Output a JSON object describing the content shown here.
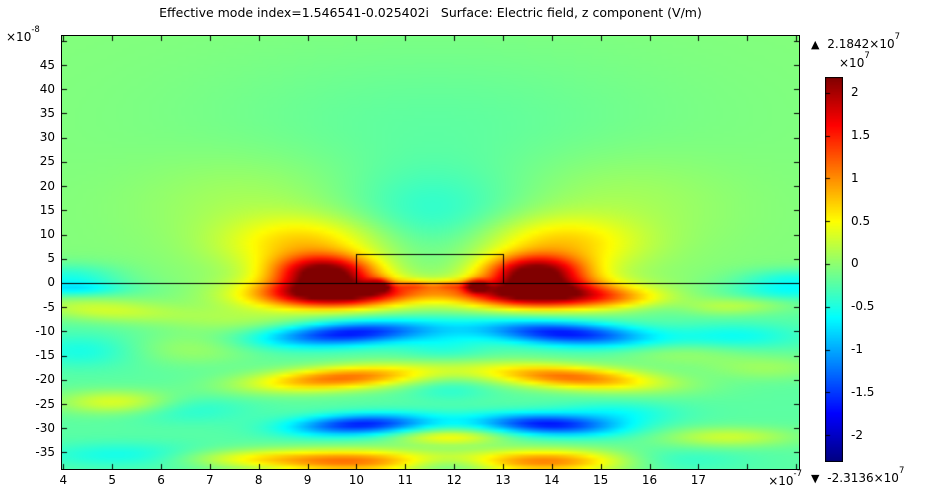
{
  "title": "Effective mode index=1.546541-0.025402i   Surface: Electric field, z component (V/m)",
  "axes": {
    "x": {
      "offset_prefix": "×10",
      "offset_exp": "-7"
    },
    "y": {
      "offset_prefix": "×10",
      "offset_exp": "-8"
    }
  },
  "colorbar": {
    "max_marker": "▲",
    "max_mantissa": " 2.1842×10",
    "max_exp": "7",
    "scale_prefix": "×10",
    "scale_exp": "7",
    "min_marker": "▼",
    "min_mantissa": " -2.3136×10",
    "min_exp": "7"
  },
  "colors": {
    "frame": "#000000",
    "background": "#ffffff",
    "max_color": "#800000",
    "min_color": "#000080",
    "zero_color": "#80ff80"
  },
  "chart_data": {
    "type": "heatmap",
    "title": "Effective mode index=1.546541-0.025402i   Surface: Electric field, z component (V/m)",
    "quantity": "Electric field, z component (V/m)",
    "effective_mode_index": "1.546541-0.025402i",
    "colormap": "jet-rainbow",
    "x_unit_scale": 1e-07,
    "y_unit_scale": 1e-08,
    "value_unit_scale": 10000000.0,
    "vmax": 2.1842,
    "vmin": -2.3136,
    "x_range": [
      3.973,
      19.06
    ],
    "y_range": [
      -38.41,
      51.0
    ],
    "x_tick_labels": [
      4,
      5,
      6,
      7,
      8,
      9,
      10,
      11,
      12,
      13,
      14,
      15,
      16,
      17
    ],
    "x_tick_marks": [
      4,
      5,
      6,
      7,
      8,
      9,
      10,
      11,
      12,
      13,
      14,
      15,
      16,
      17,
      18,
      19
    ],
    "y_tick_labels": [
      45,
      40,
      35,
      30,
      25,
      20,
      15,
      10,
      5,
      0,
      -5,
      -10,
      -15,
      -20,
      -25,
      -30,
      -35
    ],
    "y_tick_marks": [
      50,
      45,
      40,
      35,
      30,
      25,
      20,
      15,
      10,
      5,
      0,
      -5,
      -10,
      -15,
      -20,
      -25,
      -30,
      -35
    ],
    "colorbar_ticks": [
      2,
      1.5,
      1,
      0.5,
      0,
      -0.5,
      -1,
      -1.5,
      -2
    ],
    "geometry": {
      "interface_line_y": 0,
      "waveguide_rect": {
        "x1": 10,
        "x2": 13,
        "y1": 0,
        "y2": 6
      }
    },
    "base_field": {
      "above_interface": -0.05,
      "below_interface": -0.22
    },
    "field_blobs": [
      {
        "x": 11.55,
        "y": 14,
        "sx": 1.3,
        "sy": 6.5,
        "a": -0.35
      },
      {
        "x": 11.6,
        "y": 32,
        "sx": 3.4,
        "sy": 11,
        "a": -0.16
      },
      {
        "x": 9.0,
        "y": 8,
        "sx": 1.15,
        "sy": 4,
        "a": 0.75
      },
      {
        "x": 14.1,
        "y": 8,
        "sx": 1.15,
        "sy": 4,
        "a": 0.75
      },
      {
        "x": 7.9,
        "y": 17,
        "sx": 1.6,
        "sy": 7,
        "a": 0.18
      },
      {
        "x": 15.3,
        "y": 17,
        "sx": 1.6,
        "sy": 7,
        "a": 0.18
      },
      {
        "x": 9.35,
        "y": 2.2,
        "sx": 0.72,
        "sy": 2.4,
        "a": 2.1
      },
      {
        "x": 13.65,
        "y": 2.2,
        "sx": 0.72,
        "sy": 2.4,
        "a": 2.1
      },
      {
        "x": 4.1,
        "y": 1.2,
        "sx": 0.8,
        "sy": 2.0,
        "a": -0.42
      },
      {
        "x": 18.95,
        "y": 0.8,
        "sx": 0.8,
        "sy": 1.6,
        "a": -0.42
      },
      {
        "x": 10.45,
        "y": -0.6,
        "sx": 0.16,
        "sy": 0.8,
        "a": 1.6
      },
      {
        "x": 12.45,
        "y": -0.6,
        "sx": 0.16,
        "sy": 0.8,
        "a": 1.6
      },
      {
        "x": 11.2,
        "y": -0.4,
        "sx": 0.25,
        "sy": 0.6,
        "a": 0.5
      },
      {
        "x": 11.9,
        "y": -0.4,
        "sx": 0.25,
        "sy": 0.6,
        "a": 0.5
      },
      {
        "x": 11.45,
        "y": -1.6,
        "sx": 1.1,
        "sy": 1.2,
        "a": 0.4
      },
      {
        "x": 9.5,
        "y": -2.2,
        "sx": 1.0,
        "sy": 2.0,
        "a": 2.1
      },
      {
        "x": 13.7,
        "y": -2.2,
        "sx": 1.0,
        "sy": 2.0,
        "a": 2.1
      },
      {
        "x": 9.2,
        "y": -2.6,
        "sx": 1.8,
        "sy": 2.4,
        "a": 0.5
      },
      {
        "x": 14.1,
        "y": -2.6,
        "sx": 1.8,
        "sy": 2.4,
        "a": 0.5
      },
      {
        "x": 9.85,
        "y": -10.4,
        "sx": 1.2,
        "sy": 1.7,
        "a": -1.45,
        "k": 0.5
      },
      {
        "x": 14.25,
        "y": -10.4,
        "sx": 1.2,
        "sy": 1.7,
        "a": -1.45,
        "k": -0.5
      },
      {
        "x": 9.7,
        "y": -19.6,
        "sx": 1.3,
        "sy": 1.7,
        "a": 1.35,
        "k": 0.6
      },
      {
        "x": 14.35,
        "y": -19.4,
        "sx": 1.3,
        "sy": 1.7,
        "a": 1.35,
        "k": -0.6
      },
      {
        "x": 10.1,
        "y": -29.2,
        "sx": 1.0,
        "sy": 1.5,
        "a": -1.4,
        "k": 0.35
      },
      {
        "x": 13.9,
        "y": -29.2,
        "sx": 1.0,
        "sy": 1.5,
        "a": -1.4,
        "k": -0.35
      },
      {
        "x": 9.9,
        "y": -36.8,
        "sx": 1.25,
        "sy": 1.7,
        "a": 1.3
      },
      {
        "x": 13.9,
        "y": -36.8,
        "sx": 1.25,
        "sy": 1.7,
        "a": 1.3
      },
      {
        "x": 11.9,
        "y": -31.8,
        "sx": 0.75,
        "sy": 1.1,
        "a": 0.7
      },
      {
        "x": 11.8,
        "y": -13,
        "sx": 0.65,
        "sy": 2.2,
        "a": -0.26
      },
      {
        "x": 11.9,
        "y": -22,
        "sx": 0.6,
        "sy": 1.6,
        "a": -0.22
      },
      {
        "x": 11.9,
        "y": -37.5,
        "sx": 0.7,
        "sy": 1.2,
        "a": -0.4
      },
      {
        "x": 4.8,
        "y": -5.5,
        "sx": 1.1,
        "sy": 1.7,
        "a": 0.5,
        "k": -0.5
      },
      {
        "x": 4.2,
        "y": -1.2,
        "sx": 0.7,
        "sy": 1.0,
        "a": -0.38
      },
      {
        "x": 4.35,
        "y": -14,
        "sx": 0.8,
        "sy": 2.4,
        "a": -0.3
      },
      {
        "x": 6.7,
        "y": -13.5,
        "sx": 0.9,
        "sy": 2.4,
        "a": 0.28
      },
      {
        "x": 7.6,
        "y": -7.5,
        "sx": 1.1,
        "sy": 2.0,
        "a": 0.28
      },
      {
        "x": 5.1,
        "y": -24.6,
        "sx": 0.85,
        "sy": 1.7,
        "a": 0.6
      },
      {
        "x": 6.5,
        "y": -26,
        "sx": 0.9,
        "sy": 2.0,
        "a": -0.26
      },
      {
        "x": 5.2,
        "y": -35.5,
        "sx": 1.2,
        "sy": 1.8,
        "a": -0.32
      },
      {
        "x": 7.8,
        "y": -36.2,
        "sx": 1.0,
        "sy": 1.3,
        "a": 0.5
      },
      {
        "x": 15.35,
        "y": -3.2,
        "sx": 0.75,
        "sy": 1.6,
        "a": 0.5
      },
      {
        "x": 17.4,
        "y": -5,
        "sx": 1.0,
        "sy": 1.3,
        "a": 0.45,
        "k": 0.5
      },
      {
        "x": 16.5,
        "y": -5.5,
        "sx": 0.7,
        "sy": 1.3,
        "a": -0.3
      },
      {
        "x": 18.8,
        "y": -2,
        "sx": 0.8,
        "sy": 1.4,
        "a": -0.32
      },
      {
        "x": 17.75,
        "y": -11,
        "sx": 0.95,
        "sy": 1.8,
        "a": -0.36
      },
      {
        "x": 16.6,
        "y": -14.5,
        "sx": 0.9,
        "sy": 1.8,
        "a": 0.26
      },
      {
        "x": 18.4,
        "y": -17.5,
        "sx": 0.9,
        "sy": 1.8,
        "a": 0.28
      },
      {
        "x": 15.3,
        "y": -27,
        "sx": 0.9,
        "sy": 1.7,
        "a": -0.36
      },
      {
        "x": 17.6,
        "y": -31.8,
        "sx": 0.95,
        "sy": 1.4,
        "a": 0.5
      },
      {
        "x": 16.2,
        "y": -36.6,
        "sx": 1.1,
        "sy": 1.6,
        "a": -0.28
      }
    ]
  }
}
